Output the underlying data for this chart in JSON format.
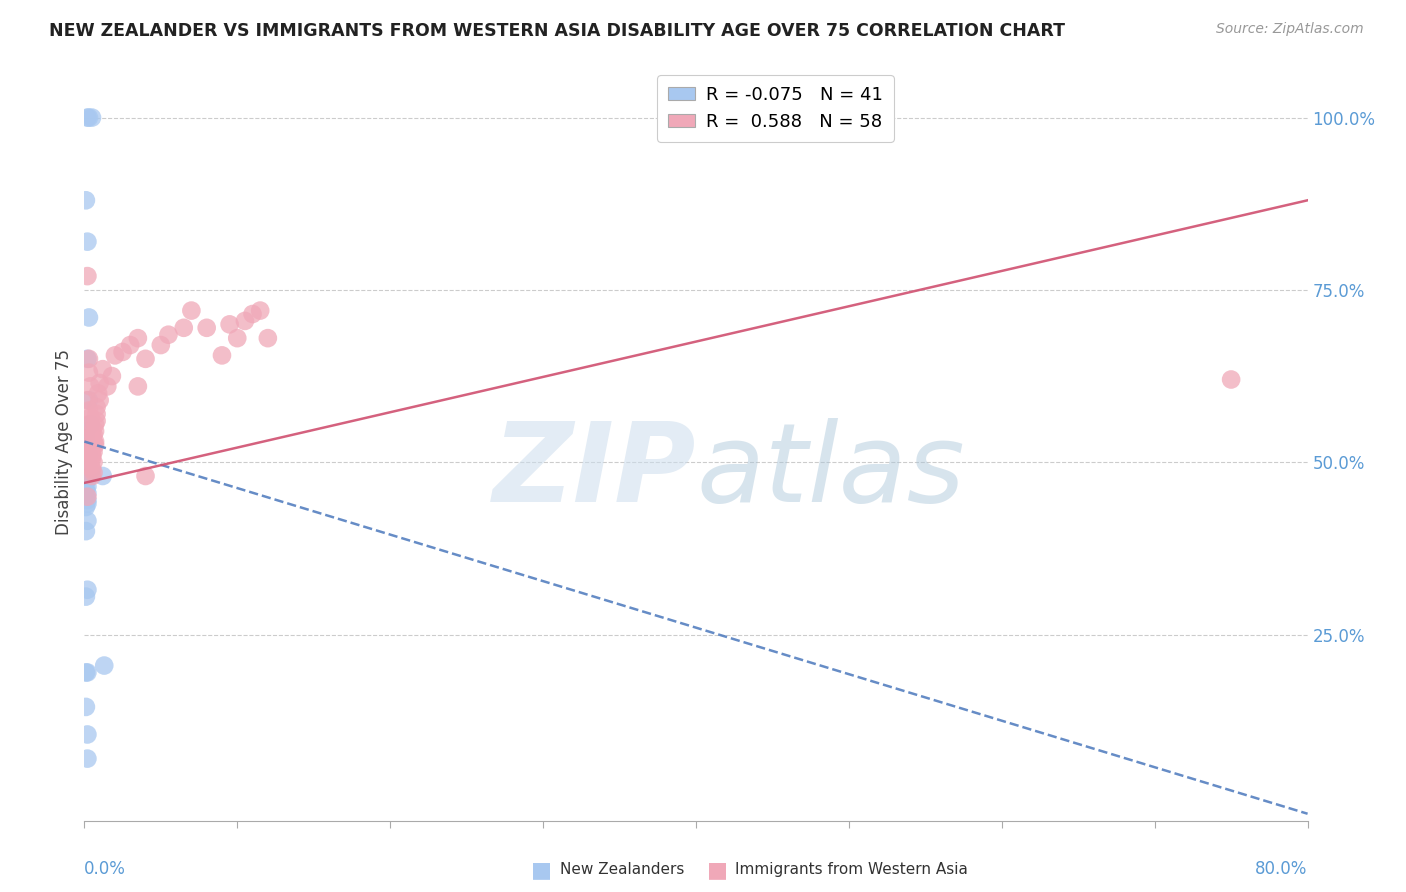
{
  "title": "NEW ZEALANDER VS IMMIGRANTS FROM WESTERN ASIA DISABILITY AGE OVER 75 CORRELATION CHART",
  "source": "Source: ZipAtlas.com",
  "ylabel": "Disability Age Over 75",
  "right_ytick_vals": [
    1.0,
    0.75,
    0.5,
    0.25
  ],
  "right_ytick_labels": [
    "100.0%",
    "75.0%",
    "50.0%",
    "25.0%"
  ],
  "legend_blue_R": "-0.075",
  "legend_blue_N": "41",
  "legend_pink_R": "0.588",
  "legend_pink_N": "58",
  "blue_color": "#a8c8f0",
  "pink_color": "#f0a8b8",
  "blue_line_color": "#5580c0",
  "pink_line_color": "#d05070",
  "xmin": 0.0,
  "xmax": 0.8,
  "ymin": -0.02,
  "ymax": 1.08,
  "nz_x": [
    0.002,
    0.003,
    0.005,
    0.001,
    0.002,
    0.003,
    0.002,
    0.003,
    0.004,
    0.001,
    0.001,
    0.002,
    0.001,
    0.003,
    0.002,
    0.001,
    0.002,
    0.003,
    0.001,
    0.002,
    0.002,
    0.001,
    0.002,
    0.001,
    0.002,
    0.001,
    0.002,
    0.003,
    0.002,
    0.001,
    0.002,
    0.001,
    0.012,
    0.002,
    0.001,
    0.013,
    0.002,
    0.001,
    0.002,
    0.001,
    0.002
  ],
  "nz_y": [
    1.0,
    1.0,
    1.0,
    0.88,
    0.82,
    0.71,
    0.65,
    0.59,
    0.555,
    0.545,
    0.535,
    0.525,
    0.515,
    0.51,
    0.505,
    0.5,
    0.495,
    0.49,
    0.485,
    0.48,
    0.475,
    0.47,
    0.465,
    0.46,
    0.455,
    0.45,
    0.445,
    0.49,
    0.44,
    0.435,
    0.415,
    0.4,
    0.48,
    0.315,
    0.305,
    0.205,
    0.195,
    0.145,
    0.105,
    0.195,
    0.07
  ],
  "wa_x": [
    0.002,
    0.003,
    0.003,
    0.004,
    0.002,
    0.003,
    0.004,
    0.003,
    0.005,
    0.003,
    0.004,
    0.005,
    0.004,
    0.005,
    0.005,
    0.006,
    0.004,
    0.005,
    0.006,
    0.005,
    0.006,
    0.005,
    0.007,
    0.006,
    0.006,
    0.007,
    0.008,
    0.007,
    0.007,
    0.008,
    0.008,
    0.009,
    0.01,
    0.01,
    0.012,
    0.015,
    0.018,
    0.02,
    0.025,
    0.03,
    0.035,
    0.04,
    0.05,
    0.055,
    0.065,
    0.07,
    0.08,
    0.095,
    0.1,
    0.11,
    0.115,
    0.12,
    0.09,
    0.105,
    0.035,
    0.04,
    0.75,
    0.002
  ],
  "wa_y": [
    0.77,
    0.65,
    0.63,
    0.61,
    0.59,
    0.575,
    0.565,
    0.555,
    0.545,
    0.535,
    0.525,
    0.52,
    0.515,
    0.51,
    0.505,
    0.5,
    0.495,
    0.49,
    0.485,
    0.48,
    0.53,
    0.51,
    0.525,
    0.515,
    0.54,
    0.555,
    0.56,
    0.545,
    0.53,
    0.58,
    0.57,
    0.6,
    0.615,
    0.59,
    0.635,
    0.61,
    0.625,
    0.655,
    0.66,
    0.67,
    0.68,
    0.65,
    0.67,
    0.685,
    0.695,
    0.72,
    0.695,
    0.7,
    0.68,
    0.715,
    0.72,
    0.68,
    0.655,
    0.705,
    0.61,
    0.48,
    0.62,
    0.45
  ],
  "blue_line_x": [
    0.0,
    0.8
  ],
  "blue_line_y": [
    0.53,
    -0.01
  ],
  "pink_line_x": [
    0.0,
    0.8
  ],
  "pink_line_y": [
    0.47,
    0.88
  ]
}
